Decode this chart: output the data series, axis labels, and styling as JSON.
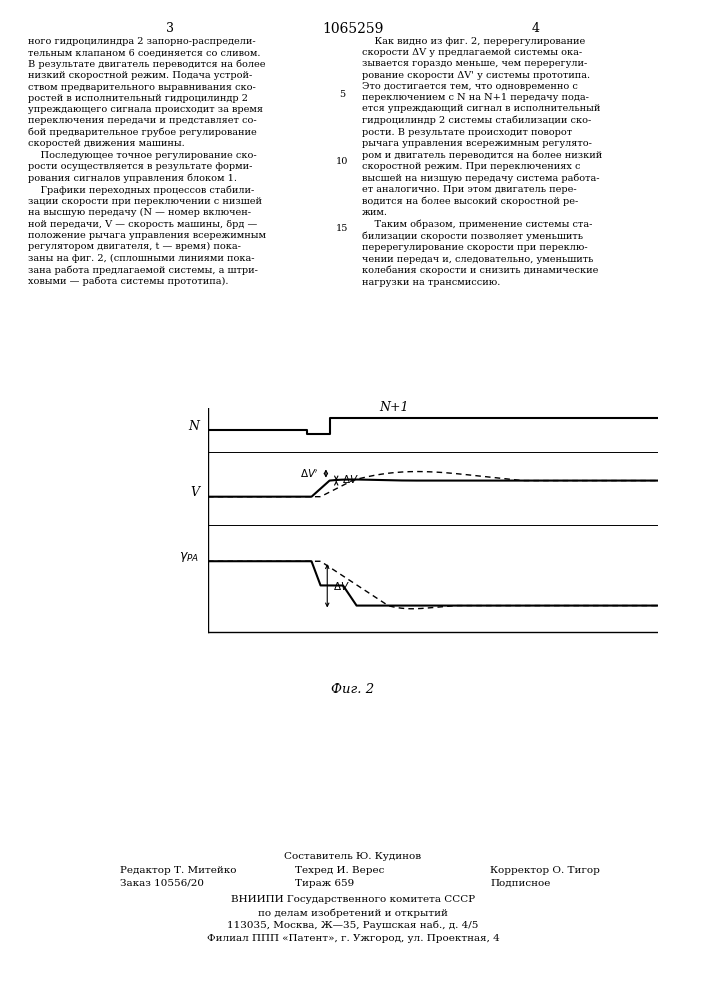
{
  "patent_number": "1065259",
  "page_left": "3",
  "page_right": "4",
  "left_column_text": "ного гидроцилиндра 2 запорно-распредели-\nтельным клапаном 6 соединяется со сливом.\nВ результате двигатель переводится на более\nнизкий скоростной режим. Подача устрой-\nством предварительного выравнивания ско-\nростей в исполнительный гидроцилиндр 2\nупреждающего сигнала происходит за время\nпереключения передачи и представляет со-\nбой предварительное грубое регулирование\nскоростей движения машины.\n    Последующее точное регулирование ско-\nрости осуществляется в результате форми-\nрования сигналов управления блоком 1.\n    Графики переходных процессов стабили-\nзации скорости при переключении с низшей\nна высшую передачу (N — номер включен-\nной передачи, V — скорость машины, δрд —\nположение рычага управления всережимным\nрегулятором двигателя, t — время) пока-\nзаны на фиг. 2, (сплошными линиями пока-\nзана работа предлагаемой системы, а штри-\nховыми — работа системы прототипа).",
  "right_column_text": "    Как видно из фиг. 2, перерегулирование\nскорости ΔV у предлагаемой системы ока-\nзывается гораздо меньше, чем перерегули-\nрование скорости ΔV' у системы прототипа.\nЭто достигается тем, что одновременно с\nпереключением с N на N+1 передачу пода-\nется упреждающий сигнал в исполнительный\nгидроцилиндр 2 системы стабилизации ско-\nрости. В результате происходит поворот\nрычага управления всережимным регулято-\nром и двигатель переводится на более низкий\nскоростной режим. При переключениях с\nвысшей на низшую передачу система работа-\nет аналогично. При этом двигатель пере-\nводится на более высокий скоростной ре-\nжим.\n    Таким образом, применение системы ста-\nбилизации скорости позволяет уменьшить\nперерегулирование скорости при переклю-\nчении передач и, следовательно, уменьшить\nколебания скорости и снизить динамические\nнагрузки на трансмиссию.",
  "line_number_5": "5",
  "line_number_10": "10",
  "line_number_15": "15",
  "fig_caption": "Фиг. 2",
  "footer_line1_center": "Составитель Ю. Кудинов",
  "footer_line2_left": "Редактор Т. Митейко",
  "footer_line2_center": "Техред И. Верес",
  "footer_line2_right": "Корректор О. Тигор",
  "footer_line3_left": "Заказ 10556/20",
  "footer_line3_center": "Тираж 659",
  "footer_line3_right": "Подписное",
  "footer_line4": "ВНИИПИ Государственного комитета СССР",
  "footer_line5": "по делам изобретений и открытий",
  "footer_line6": "113035, Москва, Ж—35, Раушская наб., д. 4/5",
  "footer_line7": "Филиал ППП «Патент», г. Ужгород, ул. Проектная, 4",
  "bg_color": "#ffffff",
  "text_color": "#000000"
}
